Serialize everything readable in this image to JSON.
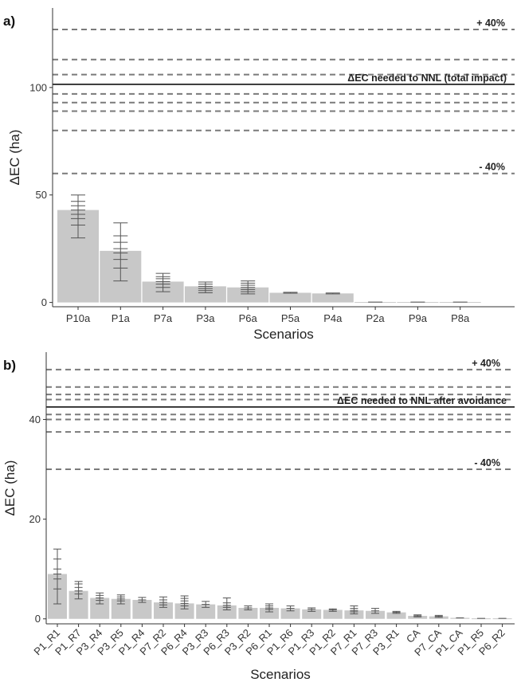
{
  "chart_data": [
    {
      "type": "bar",
      "panel_label": "a)",
      "xlabel": "Scenarios",
      "ylabel": "ΔEC (ha)",
      "ylim": [
        -2,
        137
      ],
      "yticks": [
        0,
        50,
        100
      ],
      "categories": [
        "P10a",
        "P1a",
        "P7a",
        "P3a",
        "P6a",
        "P5a",
        "P4a",
        "P2a",
        "P9a",
        "P8a"
      ],
      "values": [
        43,
        24,
        9.7,
        7.5,
        7,
        4.5,
        4.2,
        0.2,
        0.2,
        0.2
      ],
      "error_bars": [
        {
          "ticks": [
            30,
            36,
            39,
            41,
            43,
            45,
            47,
            50
          ]
        },
        {
          "ticks": [
            10,
            16,
            20,
            23,
            25,
            28,
            31,
            37
          ]
        },
        {
          "ticks": [
            5,
            7,
            8.5,
            9.7,
            11,
            12,
            13.5
          ]
        },
        {
          "ticks": [
            4.5,
            5.5,
            6.5,
            7.5,
            8.5,
            9.5
          ]
        },
        {
          "ticks": [
            4,
            5,
            6,
            7,
            8,
            9,
            10
          ]
        },
        {
          "ticks": [
            4.3,
            4.7
          ]
        },
        {
          "ticks": [
            4.0,
            4.4
          ]
        },
        {
          "ticks": [
            0.2
          ]
        },
        {
          "ticks": [
            0.2
          ]
        },
        {
          "ticks": [
            0.2
          ]
        }
      ],
      "reference_line": {
        "value": 101.5,
        "label": "ΔEC needed to NNL (total impact)"
      },
      "dashed_lines": [
        127,
        113,
        106,
        97,
        93,
        89,
        80,
        60
      ],
      "dashed_labels": [
        {
          "value": 127,
          "label": "+ 40%"
        },
        {
          "value": 60,
          "label": "- 40%"
        }
      ],
      "grid": false
    },
    {
      "type": "bar",
      "panel_label": "b)",
      "xlabel": "Scenarios",
      "ylabel": "ΔEC (ha)",
      "ylim": [
        -1,
        53.5
      ],
      "yticks": [
        0,
        20,
        40
      ],
      "categories": [
        "P1_R1",
        "P1_R7",
        "P3_R4",
        "P3_R5",
        "P1_R4",
        "P7_R2",
        "P6_R4",
        "P3_R3",
        "P6_R3",
        "P3_R2",
        "P6_R1",
        "P1_R6",
        "P1_R3",
        "P1_R2",
        "P7_R1",
        "P7_R3",
        "P3_R1",
        "CA",
        "P7_CA",
        "P1_CA",
        "P1_R5",
        "P6_R2"
      ],
      "values": [
        9,
        5.6,
        4.2,
        4,
        3.8,
        3.3,
        3.1,
        2.9,
        2.7,
        2.2,
        2.2,
        2.1,
        1.9,
        1.8,
        1.7,
        1.6,
        1.3,
        0.6,
        0.5,
        0.2,
        0.1,
        0.1
      ],
      "error_bars": [
        {
          "ticks": [
            3,
            6,
            8,
            9,
            10,
            12,
            14
          ]
        },
        {
          "ticks": [
            4,
            5,
            5.6,
            6.3,
            7,
            7.5
          ]
        },
        {
          "ticks": [
            3,
            3.7,
            4.2,
            4.7,
            5.2
          ]
        },
        {
          "ticks": [
            3,
            3.6,
            4,
            4.4,
            4.8
          ]
        },
        {
          "ticks": [
            3.3,
            3.8,
            4.3
          ]
        },
        {
          "ticks": [
            2.3,
            2.8,
            3.3,
            3.8,
            4.4
          ]
        },
        {
          "ticks": [
            2,
            2.6,
            3.1,
            3.6,
            4.1,
            4.6
          ]
        },
        {
          "ticks": [
            2.3,
            2.9,
            3.5
          ]
        },
        {
          "ticks": [
            1.8,
            2.3,
            2.7,
            3.2,
            4.2
          ]
        },
        {
          "ticks": [
            1.8,
            2.2,
            2.6
          ]
        },
        {
          "ticks": [
            1.4,
            1.9,
            2.2,
            2.6,
            3
          ]
        },
        {
          "ticks": [
            1.6,
            2.1,
            2.6
          ]
        },
        {
          "ticks": [
            1.5,
            1.9,
            2.2
          ]
        },
        {
          "ticks": [
            1.5,
            1.8,
            2
          ]
        },
        {
          "ticks": [
            1,
            1.4,
            1.7,
            2.1,
            2.6
          ]
        },
        {
          "ticks": [
            1.1,
            1.6,
            2.1
          ]
        },
        {
          "ticks": [
            1.1,
            1.3,
            1.5
          ]
        },
        {
          "ticks": [
            0.4,
            0.6,
            0.8
          ]
        },
        {
          "ticks": [
            0.3,
            0.5,
            0.7
          ]
        },
        {
          "ticks": [
            0.2
          ]
        },
        {
          "ticks": [
            0.1
          ]
        },
        {
          "ticks": [
            0.1
          ]
        }
      ],
      "reference_line": {
        "value": 42.5,
        "label": "ΔEC needed to NNL after avoidance"
      },
      "dashed_lines": [
        50,
        46.5,
        45,
        44,
        41,
        40,
        37.5,
        30
      ],
      "dashed_labels": [
        {
          "value": 50,
          "label": "+ 40%"
        },
        {
          "value": 30,
          "label": "- 40%"
        }
      ],
      "grid": false
    }
  ],
  "colors": {
    "bar": "#c8c8c8",
    "error_bar": "#555555",
    "reference_line": "#111111",
    "dashed_line": "#7a7a7a",
    "axis": "#333333"
  }
}
